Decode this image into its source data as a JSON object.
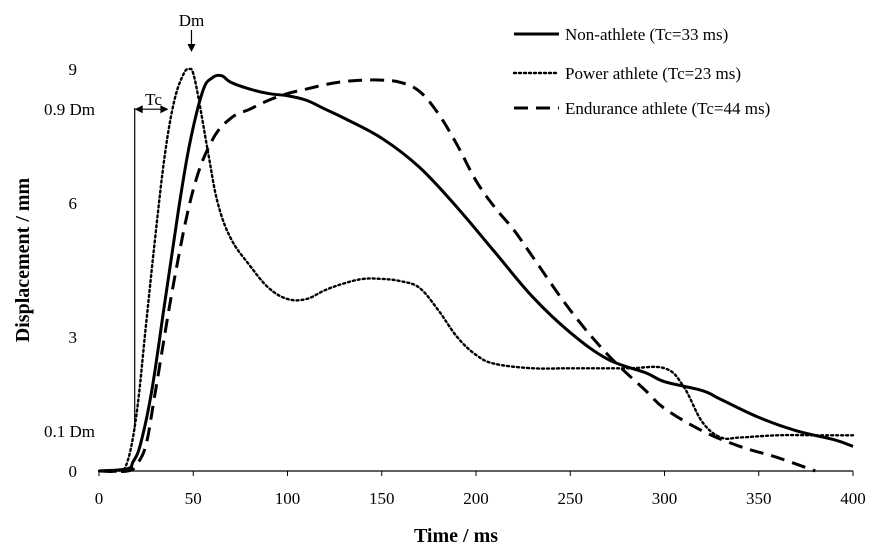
{
  "chart_data": {
    "type": "line",
    "xlabel": "Time / ms",
    "ylabel": "Displacement / mm",
    "xlim": [
      0,
      400
    ],
    "ylim": [
      0,
      10
    ],
    "x_ticks": [
      {
        "value": 0,
        "label": "0"
      },
      {
        "value": 50,
        "label": "50"
      },
      {
        "value": 100,
        "label": "100"
      },
      {
        "value": 150,
        "label": "150"
      },
      {
        "value": 200,
        "label": "200"
      },
      {
        "value": 250,
        "label": "250"
      },
      {
        "value": 300,
        "label": "300"
      },
      {
        "value": 350,
        "label": "350"
      },
      {
        "value": 400,
        "label": "400"
      }
    ],
    "y_ticks": [
      {
        "value": 0,
        "label": "0"
      },
      {
        "value": 0.9,
        "label": "0.1 Dm"
      },
      {
        "value": 3,
        "label": "3"
      },
      {
        "value": 6,
        "label": "6"
      },
      {
        "value": 8.1,
        "label": "0.9 Dm"
      },
      {
        "value": 9,
        "label": "9"
      }
    ],
    "grid": false,
    "legend_position": "top-right",
    "series": [
      {
        "name": "Non-athlete (Tc=33 ms)",
        "style": "solid",
        "color": "#000000",
        "x": [
          0,
          15,
          18,
          22,
          28,
          35,
          42,
          48,
          55,
          60,
          65,
          70,
          80,
          90,
          100,
          110,
          120,
          130,
          150,
          170,
          190,
          210,
          230,
          250,
          270,
          290,
          300,
          320,
          330,
          350,
          370,
          390,
          400
        ],
        "y": [
          0,
          0.05,
          0.2,
          0.6,
          1.8,
          3.8,
          5.8,
          7.3,
          8.5,
          8.8,
          8.85,
          8.7,
          8.55,
          8.45,
          8.4,
          8.3,
          8.1,
          7.9,
          7.45,
          6.8,
          5.9,
          4.9,
          3.9,
          3.1,
          2.5,
          2.2,
          2.0,
          1.8,
          1.6,
          1.2,
          0.9,
          0.7,
          0.55
        ]
      },
      {
        "name": "Power athlete (Tc=23 ms)",
        "style": "dotted",
        "color": "#000000",
        "x": [
          0,
          10,
          15,
          20,
          25,
          30,
          35,
          40,
          45,
          48,
          50,
          53,
          58,
          63,
          70,
          80,
          90,
          100,
          110,
          120,
          130,
          140,
          150,
          160,
          170,
          180,
          190,
          200,
          210,
          230,
          250,
          280,
          300,
          310,
          320,
          330,
          340,
          360,
          380,
          400
        ],
        "y": [
          0,
          0,
          0.2,
          1.3,
          3.3,
          5.3,
          7.1,
          8.3,
          8.9,
          9.0,
          8.9,
          8.3,
          7.1,
          6.0,
          5.2,
          4.6,
          4.1,
          3.85,
          3.85,
          4.05,
          4.2,
          4.3,
          4.3,
          4.25,
          4.1,
          3.6,
          3.0,
          2.6,
          2.4,
          2.3,
          2.3,
          2.3,
          2.3,
          1.9,
          1.1,
          0.75,
          0.75,
          0.8,
          0.8,
          0.8
        ]
      },
      {
        "name": "Endurance athlete (Tc=44 ms)",
        "style": "dashed",
        "color": "#000000",
        "x": [
          0,
          15,
          20,
          25,
          30,
          40,
          50,
          60,
          70,
          80,
          90,
          100,
          110,
          120,
          130,
          140,
          150,
          160,
          170,
          180,
          190,
          200,
          210,
          220,
          230,
          250,
          270,
          290,
          300,
          320,
          340,
          360,
          380
        ],
        "y": [
          0,
          0,
          0.15,
          0.6,
          1.8,
          4.3,
          6.3,
          7.4,
          7.9,
          8.1,
          8.3,
          8.45,
          8.55,
          8.65,
          8.72,
          8.75,
          8.75,
          8.7,
          8.5,
          8.0,
          7.3,
          6.5,
          5.9,
          5.4,
          4.8,
          3.6,
          2.6,
          1.8,
          1.4,
          0.9,
          0.55,
          0.3,
          0.0
        ]
      }
    ],
    "annotations": [
      {
        "label": "Dm",
        "x": 48,
        "y": 9.0
      },
      {
        "label": "Tc",
        "x_start": 20,
        "x_end": 40,
        "y": 8.1
      }
    ]
  }
}
